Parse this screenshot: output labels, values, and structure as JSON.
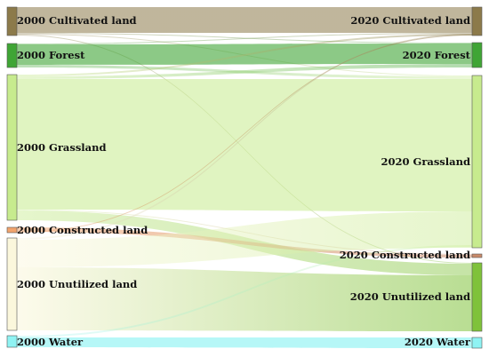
{
  "sources": [
    {
      "id": "s_cult",
      "label": "2000 Cultivated land",
      "color": "#8c7a4a"
    },
    {
      "id": "s_forest",
      "label": "2000 Forest",
      "color": "#3fa535"
    },
    {
      "id": "s_grass",
      "label": "2000 Grassland",
      "color": "#c7eb8e"
    },
    {
      "id": "s_constr",
      "label": "2000 Constructed land",
      "color": "#f2a46e"
    },
    {
      "id": "s_unut",
      "label": "2000 Unutilized land",
      "color": "#fbf7dc"
    },
    {
      "id": "s_water",
      "label": "2000 Water",
      "color": "#8ff3f3"
    }
  ],
  "targets": [
    {
      "id": "t_cult",
      "label": "2020 Cultivated land",
      "color": "#8c7a4a"
    },
    {
      "id": "t_forest",
      "label": "2020 Forest",
      "color": "#3fa535"
    },
    {
      "id": "t_grass",
      "label": "2020 Grassland",
      "color": "#c7eb8e"
    },
    {
      "id": "t_constr",
      "label": "2020 Constructed land",
      "color": "#c98a6a"
    },
    {
      "id": "t_unut",
      "label": "2020 Unutilized land",
      "color": "#7fc23a"
    },
    {
      "id": "t_water",
      "label": "2020 Water",
      "color": "#8ff3f3"
    }
  ]
}
